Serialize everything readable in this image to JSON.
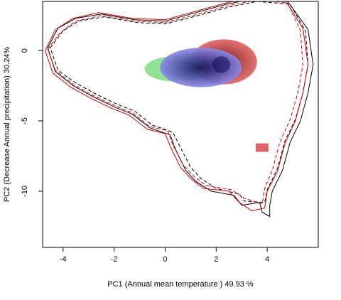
{
  "chart_data": {
    "type": "heatmap",
    "title": "",
    "xlabel": "PC1 (Annual mean temperature ) 49.93 %",
    "ylabel": "PC2 (Decrease Annual precipitation) 30.24%",
    "xlim": [
      -4.8,
      6.0
    ],
    "ylim": [
      -14.0,
      3.5
    ],
    "x_ticks": [
      -4,
      -2,
      0,
      2,
      4
    ],
    "y_ticks": [
      0,
      -5,
      -10
    ],
    "grid": false,
    "legend": "none",
    "series": [
      {
        "kind": "density",
        "color": "#e06666",
        "shade": "#7a1010",
        "center": [
          2.3,
          -0.8
        ],
        "extent": [
          1.3,
          1.6
        ],
        "peak": [
          2.3,
          -0.9
        ],
        "patch": [
          3.8,
          -6.9
        ]
      },
      {
        "kind": "density",
        "color": "#8ae08a",
        "center": [
          0.4,
          -1.3
        ],
        "extent": [
          1.2,
          0.9
        ]
      },
      {
        "kind": "density",
        "color": "#8a8ae8",
        "shade": "#10105a",
        "center": [
          1.4,
          -1.2
        ],
        "extent": [
          1.6,
          1.4
        ],
        "peak": [
          2.2,
          -1.0
        ]
      },
      {
        "kind": "envelope",
        "color": "#000000",
        "dash": "solid",
        "points": [
          [
            -4.6,
            0.2
          ],
          [
            -4.2,
            1.6
          ],
          [
            -3.5,
            2.3
          ],
          [
            -2.5,
            2.6
          ],
          [
            -1.2,
            2.2
          ],
          [
            0.0,
            2.1
          ],
          [
            0.8,
            2.5
          ],
          [
            1.4,
            2.8
          ],
          [
            2.4,
            3.3
          ],
          [
            3.5,
            3.7
          ],
          [
            4.8,
            3.5
          ],
          [
            5.6,
            1.5
          ],
          [
            5.8,
            -1.0
          ],
          [
            5.6,
            -3.0
          ],
          [
            5.3,
            -5.0
          ],
          [
            4.9,
            -6.5
          ],
          [
            4.6,
            -8.5
          ],
          [
            4.2,
            -10.0
          ],
          [
            4.1,
            -11.0
          ],
          [
            4.1,
            -11.8
          ],
          [
            3.8,
            -11.5
          ],
          [
            3.7,
            -10.8
          ],
          [
            3.0,
            -11.0
          ],
          [
            2.7,
            -10.3
          ],
          [
            1.8,
            -10.0
          ],
          [
            1.2,
            -9.3
          ],
          [
            0.8,
            -8.5
          ],
          [
            0.4,
            -7.0
          ],
          [
            0.2,
            -6.0
          ],
          [
            -0.6,
            -5.5
          ],
          [
            -1.3,
            -4.5
          ],
          [
            -2.0,
            -4.0
          ],
          [
            -2.8,
            -3.3
          ],
          [
            -3.6,
            -2.5
          ],
          [
            -4.3,
            -1.5
          ],
          [
            -4.6,
            0.2
          ]
        ]
      },
      {
        "kind": "envelope",
        "color": "#000000",
        "dash": "dashed",
        "points": [
          [
            -4.5,
            0.2
          ],
          [
            -4.0,
            1.4
          ],
          [
            -3.4,
            2.1
          ],
          [
            -2.4,
            2.4
          ],
          [
            -1.1,
            2.0
          ],
          [
            0.0,
            1.9
          ],
          [
            0.9,
            2.3
          ],
          [
            1.5,
            2.6
          ],
          [
            2.5,
            3.1
          ],
          [
            3.6,
            3.5
          ],
          [
            4.9,
            3.3
          ],
          [
            5.5,
            1.4
          ],
          [
            5.6,
            -1.0
          ],
          [
            5.4,
            -3.0
          ],
          [
            5.1,
            -4.9
          ],
          [
            4.7,
            -6.4
          ],
          [
            4.4,
            -8.4
          ],
          [
            4.0,
            -9.9
          ],
          [
            3.9,
            -10.8
          ],
          [
            3.1,
            -10.7
          ],
          [
            2.9,
            -10.2
          ],
          [
            2.0,
            -9.8
          ],
          [
            1.4,
            -9.1
          ],
          [
            1.0,
            -8.3
          ],
          [
            0.6,
            -6.9
          ],
          [
            0.3,
            -5.8
          ],
          [
            -0.5,
            -5.3
          ],
          [
            -1.2,
            -4.3
          ],
          [
            -1.9,
            -3.8
          ],
          [
            -2.7,
            -3.1
          ],
          [
            -3.5,
            -2.3
          ],
          [
            -4.2,
            -1.4
          ],
          [
            -4.5,
            0.2
          ]
        ]
      },
      {
        "kind": "envelope",
        "color": "#d40000",
        "dash": "solid",
        "points": [
          [
            -4.7,
            0.0
          ],
          [
            -4.3,
            1.5
          ],
          [
            -3.6,
            2.3
          ],
          [
            -2.6,
            2.7
          ],
          [
            -1.3,
            2.3
          ],
          [
            0.0,
            2.2
          ],
          [
            0.8,
            2.6
          ],
          [
            1.4,
            2.9
          ],
          [
            2.4,
            3.4
          ],
          [
            3.5,
            3.8
          ],
          [
            4.7,
            3.6
          ],
          [
            5.4,
            1.6
          ],
          [
            5.6,
            -1.0
          ],
          [
            5.4,
            -3.0
          ],
          [
            5.1,
            -5.0
          ],
          [
            4.7,
            -6.6
          ],
          [
            4.4,
            -8.6
          ],
          [
            4.0,
            -10.0
          ],
          [
            3.9,
            -11.2
          ],
          [
            3.4,
            -11.4
          ],
          [
            2.9,
            -10.8
          ],
          [
            2.5,
            -10.0
          ],
          [
            1.5,
            -9.8
          ],
          [
            1.0,
            -9.1
          ],
          [
            0.6,
            -8.3
          ],
          [
            0.2,
            -6.8
          ],
          [
            0.0,
            -5.9
          ],
          [
            -0.7,
            -5.6
          ],
          [
            -1.4,
            -4.6
          ],
          [
            -2.1,
            -4.1
          ],
          [
            -2.9,
            -3.4
          ],
          [
            -3.7,
            -2.6
          ],
          [
            -4.4,
            -1.6
          ],
          [
            -4.7,
            0.0
          ]
        ]
      },
      {
        "kind": "envelope",
        "color": "#d40000",
        "dash": "dashed",
        "points": [
          [
            -4.6,
            0.1
          ],
          [
            -4.1,
            1.3
          ],
          [
            -3.5,
            2.1
          ],
          [
            -2.5,
            2.5
          ],
          [
            -1.2,
            2.1
          ],
          [
            0.0,
            2.0
          ],
          [
            0.9,
            2.4
          ],
          [
            1.5,
            2.7
          ],
          [
            2.5,
            3.2
          ],
          [
            3.6,
            3.6
          ],
          [
            4.8,
            3.4
          ],
          [
            5.3,
            1.4
          ],
          [
            5.4,
            -1.0
          ],
          [
            5.2,
            -3.0
          ],
          [
            4.9,
            -4.9
          ],
          [
            4.5,
            -6.5
          ],
          [
            4.2,
            -8.5
          ],
          [
            3.9,
            -9.8
          ],
          [
            3.8,
            -10.9
          ],
          [
            3.1,
            -10.5
          ],
          [
            2.6,
            -9.9
          ],
          [
            1.6,
            -9.6
          ],
          [
            1.1,
            -8.9
          ],
          [
            0.7,
            -8.1
          ],
          [
            0.3,
            -6.7
          ],
          [
            0.1,
            -5.7
          ],
          [
            -0.6,
            -5.4
          ],
          [
            -1.3,
            -4.4
          ],
          [
            -2.0,
            -3.9
          ],
          [
            -2.8,
            -3.2
          ],
          [
            -3.6,
            -2.4
          ],
          [
            -4.3,
            -1.4
          ],
          [
            -4.6,
            0.1
          ]
        ]
      }
    ]
  }
}
